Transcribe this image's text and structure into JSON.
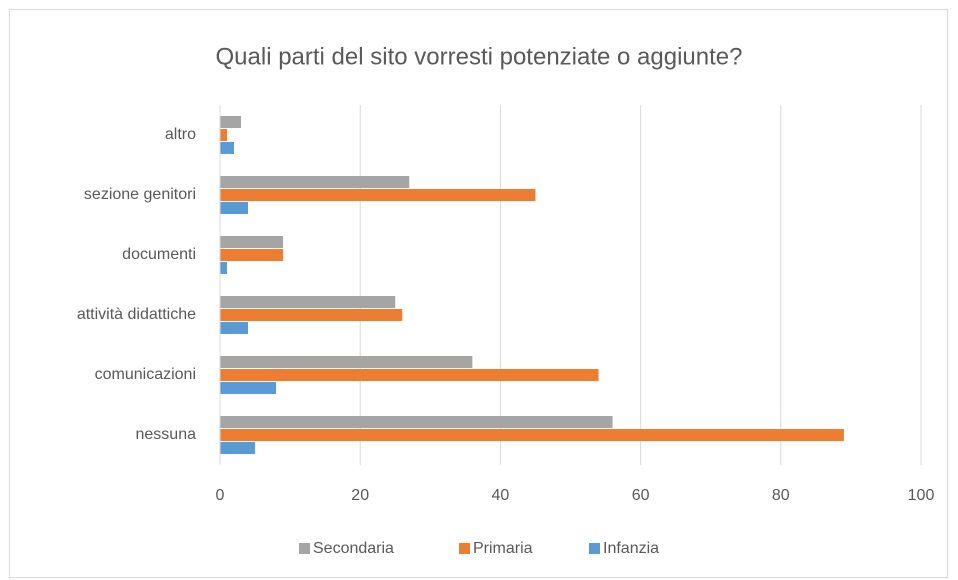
{
  "chart_data": {
    "type": "bar",
    "orientation": "horizontal",
    "title": "Quali parti del sito vorresti potenziate o aggiunte?",
    "categories": [
      "nessuna",
      "comunicazioni",
      "attività didattiche",
      "documenti",
      "sezione genitori",
      "altro"
    ],
    "series": [
      {
        "name": "Secondaria",
        "color": "#a5a5a5",
        "values": [
          56,
          36,
          25,
          9,
          27,
          3
        ]
      },
      {
        "name": "Primaria",
        "color": "#ed7d31",
        "values": [
          89,
          54,
          26,
          9,
          45,
          1
        ]
      },
      {
        "name": "Infanzia",
        "color": "#5b9bd5",
        "values": [
          5,
          8,
          4,
          1,
          4,
          2
        ]
      }
    ],
    "xlim": [
      0,
      100
    ],
    "xticks": [
      0,
      20,
      40,
      60,
      80,
      100
    ],
    "grid": true,
    "legend": "bottom"
  }
}
